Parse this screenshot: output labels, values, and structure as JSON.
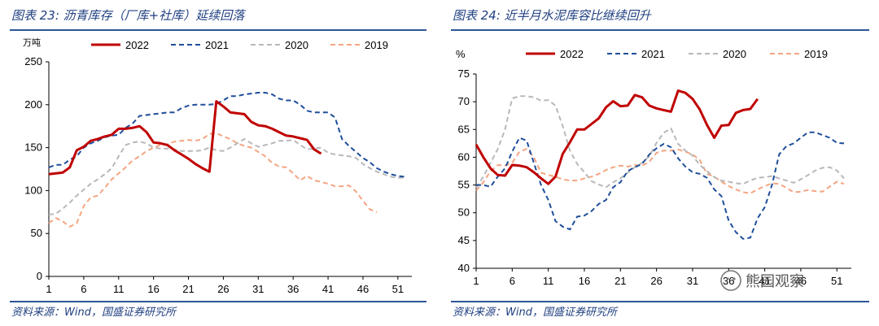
{
  "watermark": "熊园观察",
  "chart_data": [
    {
      "type": "line",
      "title": "图表 23:  沥青库存（厂库+社库）延续回落",
      "source": "资料来源：Wind，国盛证券研究所",
      "ylabel": "万吨",
      "xlabel": "",
      "ylim": [
        0,
        250
      ],
      "yticks": [
        0,
        50,
        100,
        150,
        200,
        250
      ],
      "xlim": [
        1,
        53
      ],
      "xticks": [
        1,
        6,
        11,
        16,
        21,
        26,
        31,
        36,
        41,
        46,
        51
      ],
      "legend_position": "top",
      "series": [
        {
          "name": "2022",
          "color": "#c00000",
          "dash": "solid",
          "width": 3,
          "x": [
            1,
            2,
            3,
            4,
            5,
            6,
            7,
            8,
            9,
            10,
            11,
            12,
            13,
            14,
            15,
            16,
            17,
            18,
            19,
            20,
            21,
            22,
            23,
            24,
            25,
            26,
            27,
            28,
            29,
            30,
            31,
            32,
            33,
            34,
            35,
            36,
            37,
            38,
            39,
            40
          ],
          "y": [
            119,
            120,
            121,
            127,
            147,
            151,
            158,
            160,
            163,
            165,
            172,
            172,
            173,
            175,
            168,
            156,
            155,
            153,
            147,
            142,
            137,
            131,
            126,
            122,
            204,
            198,
            191,
            190,
            189,
            180,
            176,
            175,
            172,
            168,
            164,
            163,
            161,
            159,
            148,
            143
          ]
        },
        {
          "name": "2021",
          "color": "#1f4e9a",
          "dash": "dashed",
          "width": 2,
          "x": [
            1,
            2,
            3,
            4,
            5,
            6,
            7,
            8,
            9,
            10,
            11,
            12,
            13,
            14,
            15,
            16,
            17,
            18,
            19,
            20,
            21,
            22,
            23,
            24,
            25,
            26,
            27,
            28,
            29,
            30,
            31,
            32,
            33,
            34,
            35,
            36,
            37,
            38,
            39,
            40,
            41,
            42,
            43,
            44,
            45,
            46,
            47,
            48,
            49,
            50,
            51,
            52
          ],
          "y": [
            127,
            130,
            130,
            136,
            140,
            150,
            155,
            158,
            162,
            164,
            165,
            173,
            178,
            187,
            188,
            189,
            190,
            191,
            191,
            196,
            199,
            200,
            200,
            200,
            201,
            205,
            210,
            210,
            212,
            213,
            214,
            214,
            212,
            207,
            205,
            205,
            200,
            193,
            191,
            191,
            191,
            185,
            160,
            152,
            145,
            138,
            133,
            126,
            122,
            119,
            117,
            116
          ]
        },
        {
          "name": "2020",
          "color": "#b8b8b8",
          "dash": "dashed",
          "width": 2,
          "x": [
            1,
            2,
            3,
            4,
            5,
            6,
            7,
            8,
            9,
            10,
            11,
            12,
            13,
            14,
            15,
            16,
            17,
            18,
            19,
            20,
            21,
            22,
            23,
            24,
            25,
            26,
            27,
            28,
            29,
            30,
            31,
            32,
            33,
            34,
            35,
            36,
            37,
            38,
            39,
            40,
            41,
            42,
            43,
            44,
            45,
            46,
            47,
            48,
            49,
            50,
            51,
            52
          ],
          "y": [
            72,
            73,
            79,
            86,
            94,
            101,
            108,
            113,
            119,
            126,
            140,
            153,
            156,
            157,
            155,
            150,
            149,
            149,
            148,
            146,
            146,
            146,
            147,
            150,
            147,
            146,
            150,
            155,
            160,
            155,
            151,
            153,
            155,
            158,
            158,
            159,
            153,
            148,
            149,
            150,
            144,
            142,
            141,
            140,
            138,
            131,
            126,
            122,
            119,
            116,
            115,
            115
          ]
        },
        {
          "name": "2019",
          "color": "#f4a582",
          "dash": "dashed",
          "width": 2,
          "x": [
            1,
            2,
            3,
            4,
            5,
            6,
            7,
            8,
            9,
            10,
            11,
            12,
            13,
            14,
            15,
            16,
            17,
            18,
            19,
            20,
            21,
            22,
            23,
            24,
            25,
            26,
            27,
            28,
            29,
            30,
            31,
            32,
            33,
            34,
            35,
            36,
            37,
            38,
            39,
            40,
            41,
            42,
            43,
            44,
            45,
            46,
            47,
            48
          ],
          "y": [
            62,
            68,
            64,
            58,
            62,
            82,
            92,
            94,
            103,
            113,
            120,
            127,
            135,
            140,
            146,
            150,
            153,
            154,
            157,
            158,
            159,
            158,
            160,
            166,
            167,
            163,
            160,
            155,
            152,
            150,
            145,
            140,
            132,
            128,
            127,
            120,
            112,
            117,
            112,
            110,
            108,
            105,
            105,
            106,
            99,
            88,
            78,
            75
          ]
        }
      ]
    },
    {
      "type": "line",
      "title": "图表 24:  近半月水泥库容比继续回升",
      "source": "资料来源：Wind，国盛证券研究所",
      "ylabel": "%",
      "xlabel": "",
      "ylim": [
        40,
        75
      ],
      "yticks": [
        40,
        45,
        50,
        55,
        60,
        65,
        70,
        75
      ],
      "xlim": [
        1,
        53
      ],
      "xticks": [
        1,
        6,
        11,
        16,
        21,
        26,
        31,
        36,
        41,
        46,
        51
      ],
      "legend_position": "top",
      "series": [
        {
          "name": "2022",
          "color": "#c00000",
          "dash": "solid",
          "width": 3,
          "x": [
            1,
            2,
            3,
            4,
            5,
            6,
            7,
            8,
            9,
            10,
            11,
            12,
            13,
            14,
            15,
            16,
            17,
            18,
            19,
            20,
            21,
            22,
            23,
            24,
            25,
            26,
            27,
            28,
            29,
            30,
            31,
            32,
            33,
            34,
            35,
            36,
            37,
            38,
            39,
            40
          ],
          "y": [
            62.3,
            60,
            58,
            56.8,
            56.7,
            58.6,
            58.5,
            58.2,
            57.3,
            56.2,
            55.2,
            56.5,
            60.6,
            62.7,
            65,
            65,
            66,
            67,
            69,
            70.1,
            69.2,
            69.3,
            71.2,
            70.8,
            69.3,
            68.8,
            68.5,
            68.2,
            72,
            71.6,
            70.5,
            68.6,
            65.8,
            63.5,
            65.7,
            65.8,
            68,
            68.5,
            68.7,
            70.5
          ]
        },
        {
          "name": "2021",
          "color": "#1f4e9a",
          "dash": "dashed",
          "width": 2,
          "x": [
            1,
            2,
            3,
            4,
            5,
            6,
            7,
            8,
            9,
            10,
            11,
            12,
            13,
            14,
            15,
            16,
            17,
            18,
            19,
            20,
            21,
            22,
            23,
            24,
            25,
            26,
            27,
            28,
            29,
            30,
            31,
            32,
            33,
            34,
            35,
            36,
            37,
            38,
            39,
            40,
            41,
            42,
            43,
            44,
            45,
            46,
            47,
            48,
            49,
            50,
            51,
            52
          ],
          "y": [
            55,
            55,
            54.7,
            56.5,
            58,
            61,
            63.5,
            63,
            59,
            55,
            52.3,
            48.5,
            47.5,
            47,
            49.3,
            49.5,
            50.3,
            51.6,
            52.3,
            54.6,
            55.5,
            57.5,
            58.2,
            58.8,
            60.5,
            61.6,
            62.4,
            61.8,
            59.8,
            58.3,
            57.3,
            57,
            56.3,
            54.2,
            53,
            48.6,
            46.5,
            45.3,
            45.5,
            49,
            51,
            55,
            60.5,
            62,
            62.5,
            63.5,
            64.5,
            64.5,
            64,
            63.5,
            62.6,
            62.5
          ]
        },
        {
          "name": "2020",
          "color": "#b8b8b8",
          "dash": "dashed",
          "width": 2,
          "x": [
            1,
            2,
            3,
            4,
            5,
            6,
            7,
            8,
            9,
            10,
            11,
            12,
            13,
            14,
            15,
            16,
            17,
            18,
            19,
            20,
            21,
            22,
            23,
            24,
            25,
            26,
            27,
            28,
            29,
            30,
            31,
            32,
            33,
            34,
            35,
            36,
            37,
            38,
            39,
            40,
            41,
            42,
            43,
            44,
            45,
            46,
            47,
            48,
            49,
            50,
            51,
            52
          ],
          "y": [
            54.5,
            56.5,
            59,
            61.5,
            65,
            70.6,
            71,
            71,
            70.8,
            70.2,
            70.3,
            69.3,
            65.6,
            61.2,
            58.8,
            57.3,
            55.7,
            55.1,
            54.6,
            55.5,
            56.2,
            57.2,
            58.2,
            59,
            60.2,
            62.6,
            64.4,
            65.2,
            62.4,
            61.2,
            60.3,
            58.6,
            57.5,
            56.4,
            55.8,
            55.6,
            55.3,
            55.2,
            55.8,
            56.3,
            56.4,
            56.6,
            56.2,
            55.8,
            55.4,
            56,
            56.8,
            57.6,
            58.1,
            58.2,
            57.6,
            56.2
          ]
        },
        {
          "name": "2019",
          "color": "#f4a582",
          "dash": "dashed",
          "width": 2,
          "x": [
            1,
            2,
            3,
            4,
            5,
            6,
            7,
            8,
            9,
            10,
            11,
            12,
            13,
            14,
            15,
            16,
            17,
            18,
            19,
            20,
            21,
            22,
            23,
            24,
            25,
            26,
            27,
            28,
            29,
            30,
            31,
            32,
            33,
            34,
            35,
            36,
            37,
            38,
            39,
            40,
            41,
            42,
            43,
            44,
            45,
            46,
            47,
            48,
            49,
            50,
            51,
            52
          ],
          "y": [
            54,
            55.5,
            57.5,
            58.6,
            58.5,
            59,
            61,
            61.5,
            60,
            57.2,
            56.8,
            56.5,
            56,
            55.8,
            55.8,
            56.2,
            56.5,
            57,
            57.7,
            58.2,
            58.5,
            58.3,
            58.6,
            58.5,
            59.2,
            60.8,
            61.2,
            61.2,
            61.4,
            61,
            60.5,
            59.5,
            57,
            56.5,
            55.6,
            54.8,
            54.2,
            53.7,
            53.5,
            54.2,
            54.8,
            55.3,
            55.2,
            54.5,
            53.7,
            53.8,
            54.1,
            53.9,
            53.8,
            54.7,
            55.6,
            55.2
          ]
        }
      ]
    }
  ]
}
